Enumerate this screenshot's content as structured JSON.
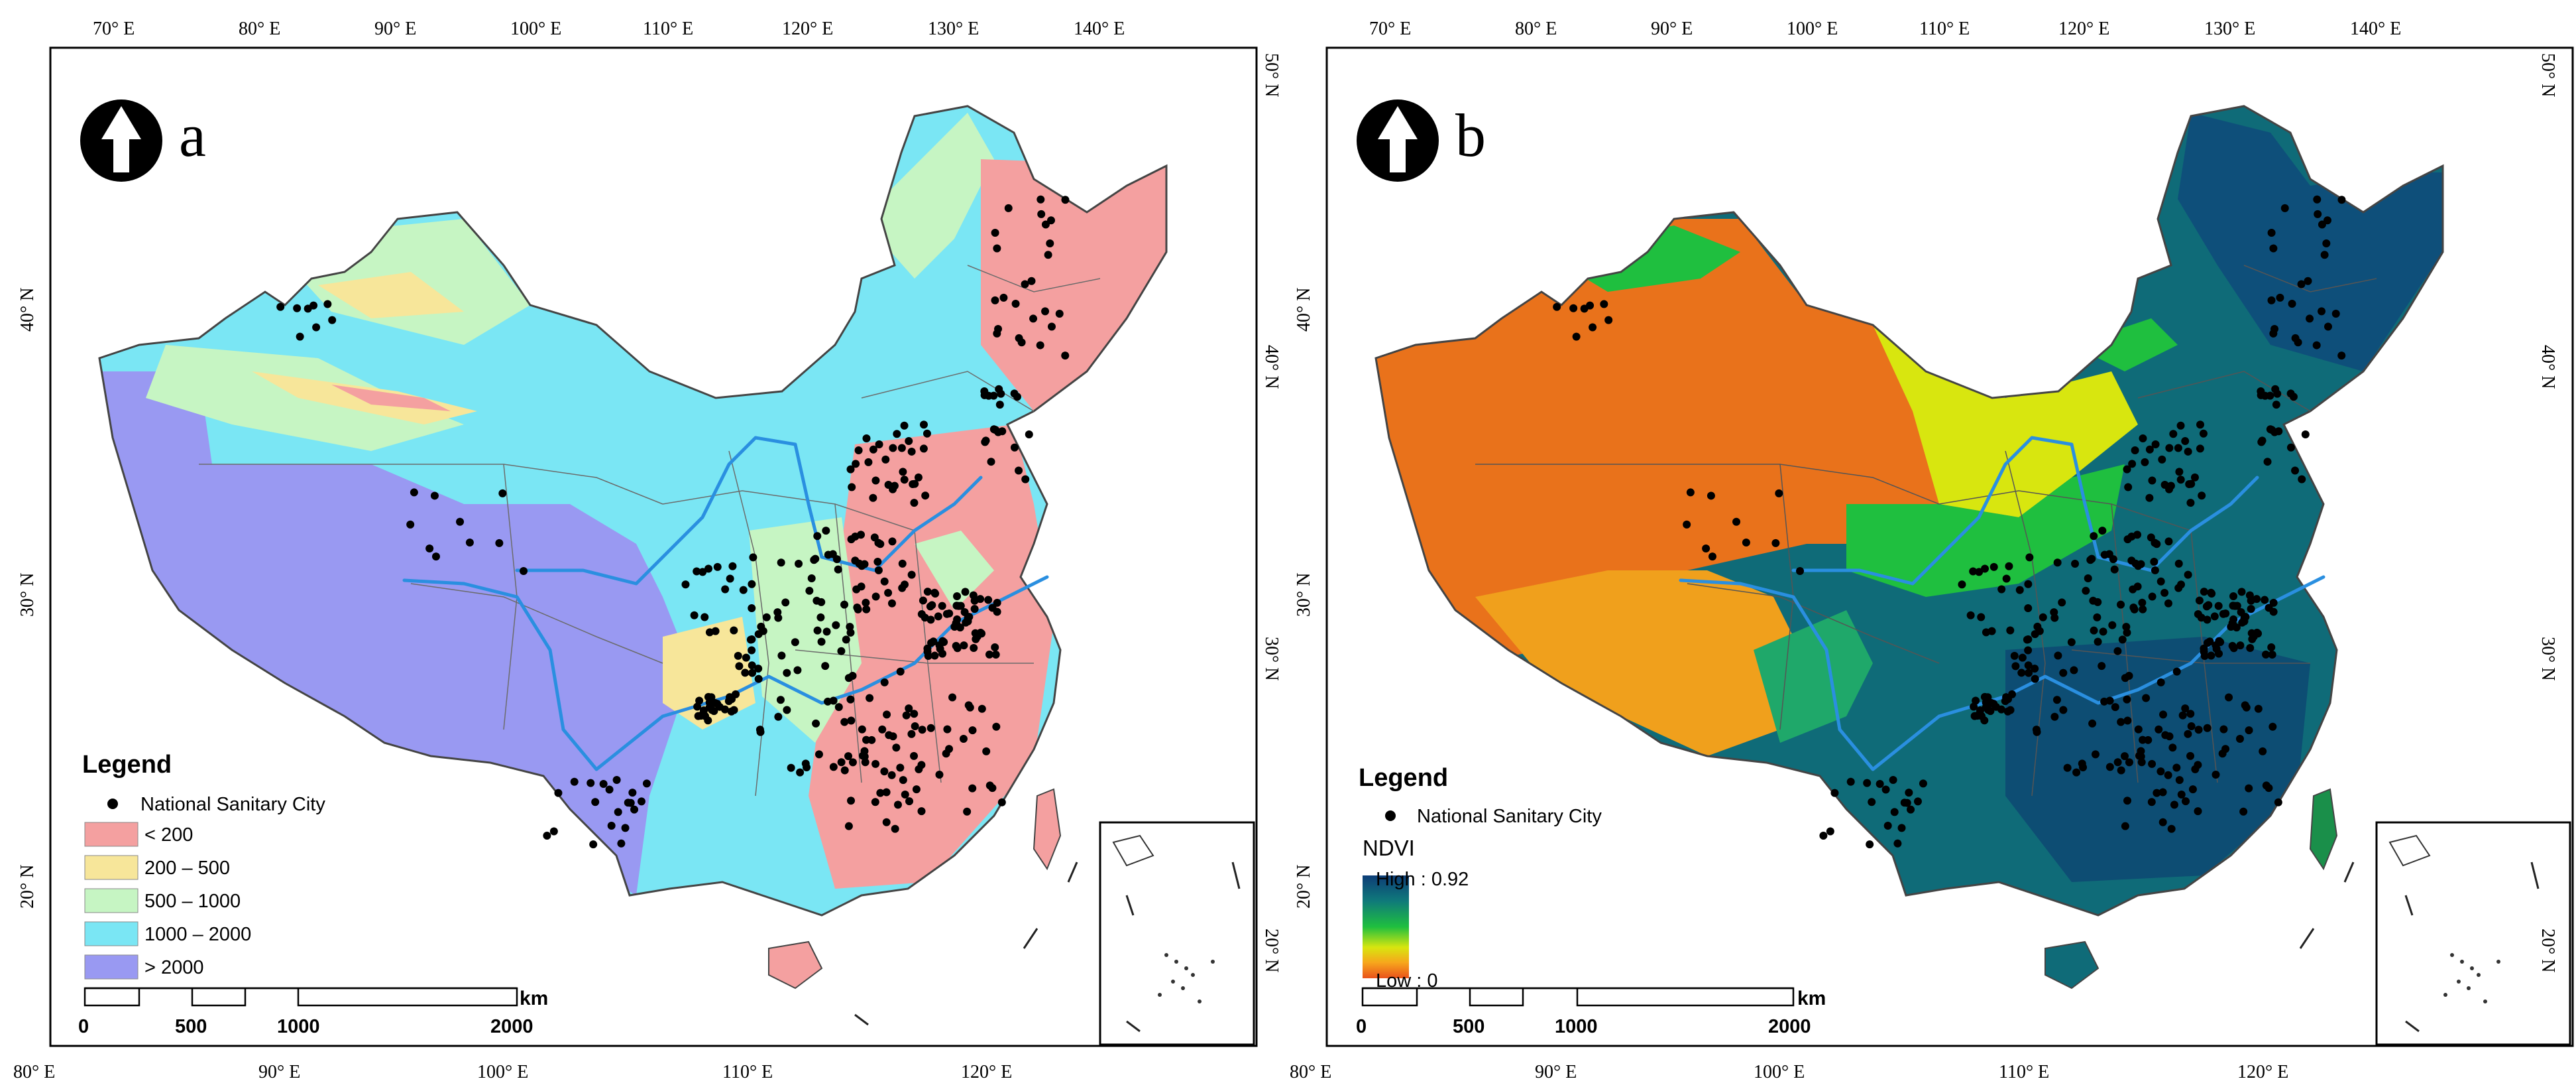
{
  "map_a": {
    "panel_label": "a",
    "top_ticks": [
      "70° E",
      "80° E",
      "90° E",
      "100° E",
      "110° E",
      "120° E",
      "130° E",
      "140° E"
    ],
    "bottom_ticks": [
      "80° E",
      "90° E",
      "100° E",
      "110° E",
      "120° E"
    ],
    "left_ticks": [
      "40° N",
      "30° N",
      "20° N"
    ],
    "right_ticks": [
      "50° N",
      "40° N",
      "30° N",
      "20° N"
    ],
    "legend": {
      "title": "Legend",
      "point_label": "National Sanitary City",
      "classes": [
        {
          "label": "< 200",
          "color": "#f4a0a0"
        },
        {
          "label": "200 – 500",
          "color": "#f7e69a"
        },
        {
          "label": "500 – 1000",
          "color": "#c6f5c3"
        },
        {
          "label": "1000 – 2000",
          "color": "#7ae6f4"
        },
        {
          "label": "> 2000",
          "color": "#9999f2"
        }
      ]
    },
    "scale": {
      "unit": "km",
      "labels": [
        "0",
        "500",
        "1000",
        "2000"
      ]
    }
  },
  "map_b": {
    "panel_label": "b",
    "top_ticks": [
      "70° E",
      "80° E",
      "90° E",
      "100° E",
      "110° E",
      "120° E",
      "130° E",
      "140° E"
    ],
    "bottom_ticks": [
      "80° E",
      "90° E",
      "100° E",
      "110° E",
      "120° E"
    ],
    "left_ticks": [
      "40° N",
      "30° N",
      "20° N"
    ],
    "right_ticks": [
      "50° N",
      "40° N",
      "30° N",
      "20° N"
    ],
    "legend": {
      "title": "Legend",
      "point_label": "National Sanitary City",
      "ramp_title": "NDVI",
      "high_label": "High : 0.92",
      "low_label": "Low : 0",
      "ramp_colors": [
        "#0d3d78",
        "#0f7a7a",
        "#1fbf3f",
        "#d8e60f",
        "#f7a51c",
        "#e9521b"
      ]
    },
    "scale": {
      "unit": "km",
      "labels": [
        "0",
        "500",
        "1000",
        "2000"
      ]
    }
  },
  "colors": {
    "river": "#2a8fe0",
    "city": "#000000",
    "frame": "#000000",
    "province": "#6b6b6b"
  }
}
